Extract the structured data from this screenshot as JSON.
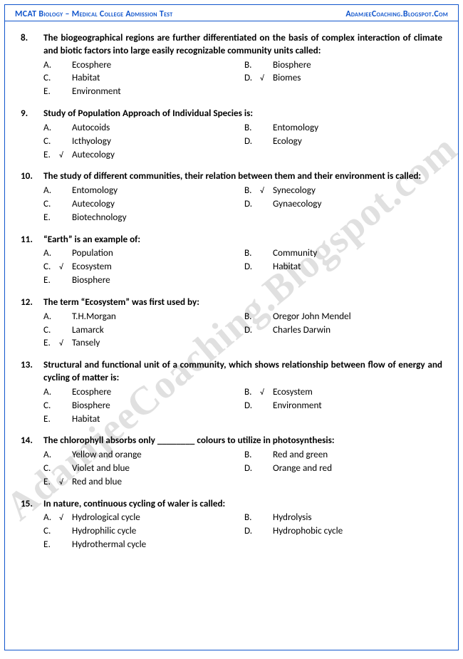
{
  "header": {
    "left": "MCAT Biology – Medical College Admission Test",
    "right": "AdamjeeCoaching.Blogspot.Com"
  },
  "watermark": "AdamjeeCoaching.Blogspot.com",
  "colors": {
    "border": "#1155cc",
    "header_text": "#1155cc",
    "body_text": "#000000",
    "background": "#ffffff",
    "watermark": "rgba(0,0,0,0.12)"
  },
  "typography": {
    "body_font": "Calibri",
    "body_size_pt": 10,
    "header_size_pt": 9,
    "watermark_size_pt": 42
  },
  "check_glyph": "√",
  "questions": [
    {
      "num": "8.",
      "text": "The biogeographical regions are further differentiated on the basis of complex interaction of climate and biotic factors into large easily recognizable community units called:",
      "options": [
        {
          "letter": "A.",
          "text": "Ecosphere",
          "correct": false
        },
        {
          "letter": "B.",
          "text": "Biosphere",
          "correct": false
        },
        {
          "letter": "C.",
          "text": "Habitat",
          "correct": false
        },
        {
          "letter": "D.",
          "text": "Biomes",
          "correct": true
        },
        {
          "letter": "E.",
          "text": "Environment",
          "correct": false,
          "full": true
        }
      ]
    },
    {
      "num": "9.",
      "text": "Study of Population Approach of Individual Species is:",
      "options": [
        {
          "letter": "A.",
          "text": "Autocoids",
          "correct": false
        },
        {
          "letter": "B.",
          "text": "Entomology",
          "correct": false
        },
        {
          "letter": "C.",
          "text": "Icthyology",
          "correct": false
        },
        {
          "letter": "D.",
          "text": "Ecology",
          "correct": false
        },
        {
          "letter": "E.",
          "text": "Autecology",
          "correct": true,
          "full": true
        }
      ]
    },
    {
      "num": "10.",
      "text": "The study of different communities, their relation between them and their environment is called:",
      "options": [
        {
          "letter": "A.",
          "text": "Entomology",
          "correct": false
        },
        {
          "letter": "B.",
          "text": "Synecology",
          "correct": true
        },
        {
          "letter": "C.",
          "text": "Autecology",
          "correct": false
        },
        {
          "letter": "D.",
          "text": "Gynaecology",
          "correct": false
        },
        {
          "letter": "E.",
          "text": "Biotechnology",
          "correct": false,
          "full": true
        }
      ]
    },
    {
      "num": "11.",
      "text": "“Earth” is an example of:",
      "options": [
        {
          "letter": "A.",
          "text": "Population",
          "correct": false
        },
        {
          "letter": "B.",
          "text": "Community",
          "correct": false
        },
        {
          "letter": "C.",
          "text": "Ecosystem",
          "correct": true
        },
        {
          "letter": "D.",
          "text": "Habitat",
          "correct": false
        },
        {
          "letter": "E.",
          "text": "Biosphere",
          "correct": false,
          "full": true
        }
      ]
    },
    {
      "num": "12.",
      "text": "The term “Ecosystem” was first used by:",
      "options": [
        {
          "letter": "A.",
          "text": "T.H.Morgan",
          "correct": false
        },
        {
          "letter": "B.",
          "text": "Oregor John Mendel",
          "correct": false
        },
        {
          "letter": "C.",
          "text": "Lamarck",
          "correct": false
        },
        {
          "letter": "D.",
          "text": "Charles Darwin",
          "correct": false
        },
        {
          "letter": "E.",
          "text": "Tansely",
          "correct": true,
          "full": true
        }
      ]
    },
    {
      "num": "13.",
      "text": "Structural and functional unit of a community, which shows relationship between flow of energy and cycling of matter is:",
      "options": [
        {
          "letter": "A.",
          "text": "Ecosphere",
          "correct": false
        },
        {
          "letter": "B.",
          "text": "Ecosystem",
          "correct": true
        },
        {
          "letter": "C.",
          "text": "Biosphere",
          "correct": false
        },
        {
          "letter": "D.",
          "text": "Environment",
          "correct": false
        },
        {
          "letter": "E.",
          "text": "Habitat",
          "correct": false,
          "full": true
        }
      ]
    },
    {
      "num": "14.",
      "text": "The chlorophyll absorbs only ________ colours to utilize in photosynthesis:",
      "options": [
        {
          "letter": "A.",
          "text": "Yellow and orange",
          "correct": false
        },
        {
          "letter": "B.",
          "text": "Red and green",
          "correct": false
        },
        {
          "letter": "C.",
          "text": "Violet and blue",
          "correct": false
        },
        {
          "letter": "D.",
          "text": "Orange and red",
          "correct": false
        },
        {
          "letter": "E.",
          "text": "Red and blue",
          "correct": true,
          "full": true
        }
      ]
    },
    {
      "num": "15.",
      "text": "In nature, continuous cycling of waler is called:",
      "options": [
        {
          "letter": "A.",
          "text": "Hydrological cycle",
          "correct": true
        },
        {
          "letter": "B.",
          "text": "Hydrolysis",
          "correct": false
        },
        {
          "letter": "C.",
          "text": "Hydrophilic cycle",
          "correct": false
        },
        {
          "letter": "D.",
          "text": "Hydrophobic cycle",
          "correct": false
        },
        {
          "letter": "E.",
          "text": "Hydrothermal cycle",
          "correct": false,
          "full": true
        }
      ]
    }
  ]
}
